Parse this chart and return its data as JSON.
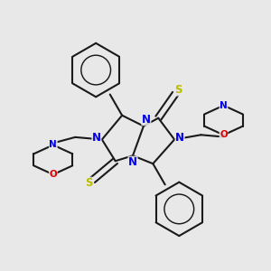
{
  "bg_color": "#e8e8e8",
  "bond_color": "#1a1a1a",
  "N_color": "#0000ee",
  "O_color": "#dd0000",
  "S_color": "#bbbb00",
  "lw": 1.5,
  "dpi": 100,
  "figsize": [
    3.0,
    3.0
  ],
  "xlim": [
    0,
    10
  ],
  "ylim": [
    0.5,
    10.5
  ]
}
